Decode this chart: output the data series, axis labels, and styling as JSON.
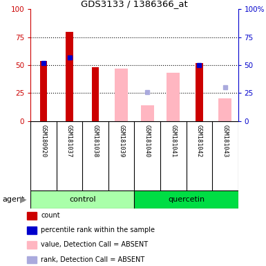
{
  "title": "GDS3133 / 1386366_at",
  "samples": [
    "GSM180920",
    "GSM181037",
    "GSM181038",
    "GSM181039",
    "GSM181040",
    "GSM181041",
    "GSM181042",
    "GSM181043"
  ],
  "red_bars": [
    54,
    80,
    48,
    null,
    null,
    null,
    52,
    null
  ],
  "blue_squares": [
    52,
    57,
    null,
    null,
    null,
    null,
    50,
    null
  ],
  "pink_bars": [
    null,
    null,
    null,
    47,
    14,
    43,
    null,
    20
  ],
  "lavender_squares": [
    null,
    null,
    null,
    null,
    26,
    null,
    null,
    30
  ],
  "ylim": [
    0,
    100
  ],
  "red_color": "#CC0000",
  "blue_color": "#0000CC",
  "pink_color": "#FFB6C1",
  "lavender_color": "#AAAADD",
  "tick_color_left": "#CC0000",
  "tick_color_right": "#0000CC",
  "bg_color": "#D8D8D8",
  "control_color": "#AAFFAA",
  "quercetin_color": "#00DD44",
  "legend_items": [
    {
      "color": "#CC0000",
      "label": "count"
    },
    {
      "color": "#0000CC",
      "label": "percentile rank within the sample"
    },
    {
      "color": "#FFB6C1",
      "label": "value, Detection Call = ABSENT"
    },
    {
      "color": "#AAAADD",
      "label": "rank, Detection Call = ABSENT"
    }
  ]
}
